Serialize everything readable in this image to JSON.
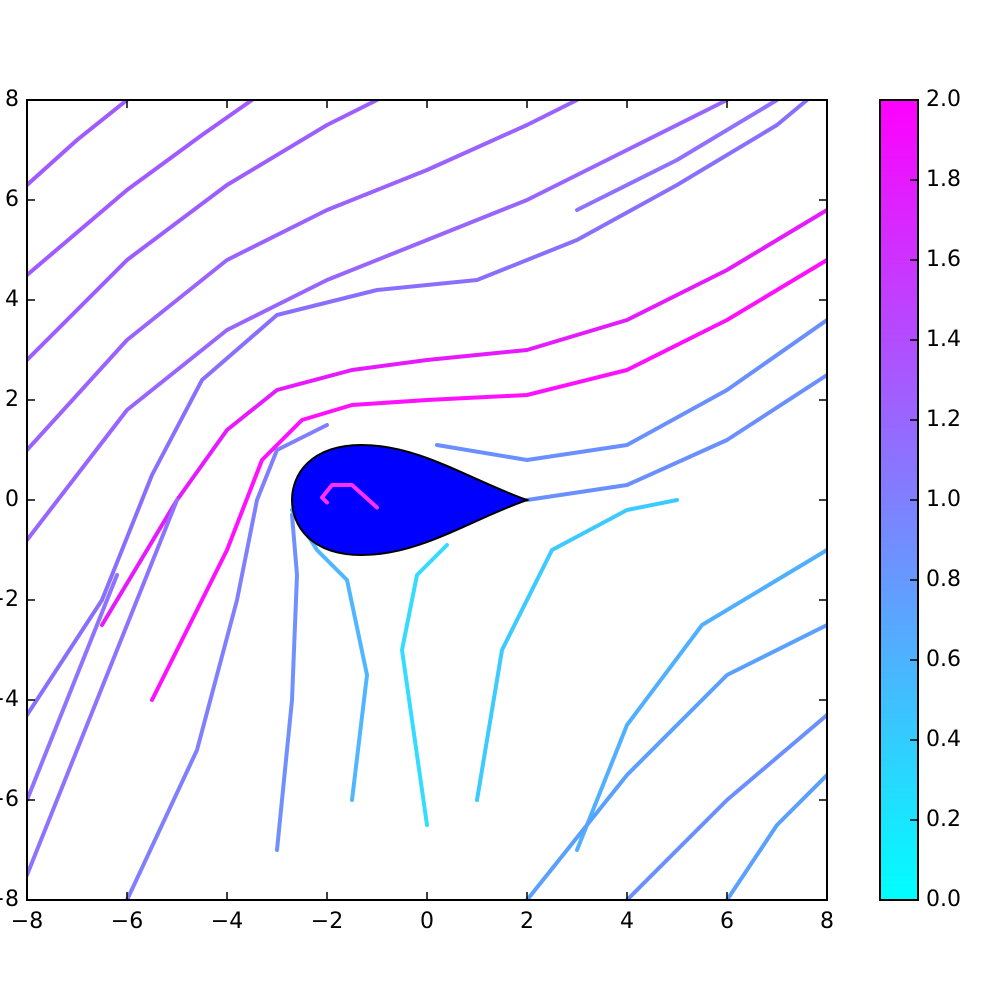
{
  "chart_data": {
    "type": "streamplot",
    "xlim": [
      -8,
      8
    ],
    "ylim": [
      -8,
      8
    ],
    "xticks": [
      {
        "value": -8,
        "label": "−8"
      },
      {
        "value": -6,
        "label": "−6"
      },
      {
        "value": -4,
        "label": "−4"
      },
      {
        "value": -2,
        "label": "−2"
      },
      0,
      2,
      4,
      6,
      8
    ],
    "yticks": [
      {
        "value": -8,
        "label": "−8"
      },
      {
        "value": -6,
        "label": "−6"
      },
      {
        "value": -4,
        "label": "−4"
      },
      {
        "value": -2,
        "label": "−2"
      },
      0,
      2,
      4,
      6,
      8
    ],
    "grid": false,
    "colormap": [
      "#00ffff",
      "#ff00ff"
    ],
    "clim": [
      0,
      2
    ],
    "cticks": [
      {
        "value": 0,
        "label": "0.0"
      },
      {
        "value": 0.2,
        "label": "0.2"
      },
      {
        "value": 0.4,
        "label": "0.4"
      },
      {
        "value": 0.6,
        "label": "0.6"
      },
      {
        "value": 0.8,
        "label": "0.8"
      },
      {
        "value": 1,
        "label": "1.0"
      },
      {
        "value": 1.2,
        "label": "1.2"
      },
      {
        "value": 1.4,
        "label": "1.4"
      },
      {
        "value": 1.6,
        "label": "1.6"
      },
      {
        "value": 1.8,
        "label": "1.8"
      },
      {
        "value": 2,
        "label": "2.0"
      }
    ],
    "streamlines": [
      {
        "color": "#a05aff",
        "x": [
          -8,
          -7,
          -6
        ],
        "y": [
          6.3,
          7.2,
          8
        ]
      },
      {
        "color": "#a05aff",
        "x": [
          -8,
          -6,
          -4.5,
          -3.5
        ],
        "y": [
          4.5,
          6.2,
          7.3,
          8
        ]
      },
      {
        "color": "#9c5eff",
        "x": [
          -8,
          -6,
          -4,
          -2,
          -1
        ],
        "y": [
          2.8,
          4.8,
          6.3,
          7.5,
          8
        ]
      },
      {
        "color": "#9a62ff",
        "x": [
          -8,
          -6,
          -4,
          -2,
          0,
          2,
          3
        ],
        "y": [
          1,
          3.2,
          4.8,
          5.8,
          6.6,
          7.5,
          8
        ]
      },
      {
        "color": "#9866ff",
        "x": [
          -8,
          -6,
          -4,
          -2,
          0,
          2,
          4,
          6
        ],
        "y": [
          -0.8,
          1.8,
          3.4,
          4.4,
          5.2,
          6,
          7,
          8
        ]
      },
      {
        "color": "#e61aff",
        "x": [
          -6.5,
          -5,
          -4,
          -3,
          -1.5,
          0,
          2,
          4,
          6,
          8
        ],
        "y": [
          -2.5,
          0,
          1.4,
          2.2,
          2.6,
          2.8,
          3,
          3.6,
          4.6,
          5.8
        ]
      },
      {
        "color": "#ff10ff",
        "x": [
          -5.5,
          -4,
          -3.3,
          -2.5,
          -1.5,
          0,
          2,
          4,
          6,
          8
        ],
        "y": [
          -4,
          -1,
          0.8,
          1.6,
          1.9,
          2,
          2.1,
          2.6,
          3.6,
          4.8
        ]
      },
      {
        "color": "#8a6fff",
        "x": [
          -8,
          -6.5,
          -5.5,
          -4.5,
          -3,
          -1,
          1,
          3,
          5,
          7,
          7.6
        ],
        "y": [
          -4.3,
          -2,
          0.5,
          2.4,
          3.7,
          4.2,
          4.4,
          5.2,
          6.3,
          7.5,
          8
        ]
      },
      {
        "color": "#8080ff",
        "x": [
          -6,
          -4.6,
          -3.8,
          -3.4,
          -3,
          -2
        ],
        "y": [
          -8,
          -5,
          -2,
          0,
          1,
          1.5
        ]
      },
      {
        "color": "#7090ff",
        "x": [
          -3,
          -2.7,
          -2.6,
          -2.7
        ],
        "y": [
          -7,
          -4,
          -1.5,
          -0.3
        ]
      },
      {
        "color": "#4fb6ff",
        "x": [
          -1.5,
          -1.2,
          -1.6,
          -2.2,
          -2.7
        ],
        "y": [
          -6,
          -3.5,
          -1.6,
          -1,
          -0.2
        ]
      },
      {
        "color": "#35dcff",
        "x": [
          0,
          -0.5,
          -0.2,
          0.4
        ],
        "y": [
          -6.5,
          -3,
          -1.5,
          -0.9
        ]
      },
      {
        "color": "#3ccaff",
        "x": [
          1,
          1.5,
          2.5,
          4,
          5
        ],
        "y": [
          -6,
          -3,
          -1,
          -0.2,
          0
        ]
      },
      {
        "color": "#50b0ff",
        "x": [
          3,
          4,
          5.5,
          8
        ],
        "y": [
          -7,
          -4.5,
          -2.5,
          -1
        ]
      },
      {
        "color": "#5aa0ff",
        "x": [
          6,
          7,
          8
        ],
        "y": [
          -8,
          -6.5,
          -5.5
        ]
      },
      {
        "color": "#5aa0ff",
        "x": [
          2,
          4,
          6,
          8
        ],
        "y": [
          -8,
          -5.5,
          -3.5,
          -2.5
        ]
      },
      {
        "color": "#6a8fff",
        "x": [
          2,
          4,
          6,
          8
        ],
        "y": [
          0,
          0.3,
          1.2,
          2.5
        ]
      },
      {
        "color": "#6a8fff",
        "x": [
          0.2,
          2,
          4,
          6,
          8
        ],
        "y": [
          1.1,
          0.8,
          1.1,
          2.2,
          3.6
        ]
      },
      {
        "color": "#8f72ff",
        "x": [
          -8,
          -7,
          -6,
          -5
        ],
        "y": [
          -7.5,
          -5,
          -2.5,
          0
        ]
      },
      {
        "color": "#8f72ff",
        "x": [
          -8,
          -7,
          -6.2
        ],
        "y": [
          -6,
          -3.5,
          -1.5
        ]
      },
      {
        "color": "#6a8fff",
        "x": [
          4,
          6,
          8
        ],
        "y": [
          -8,
          -6,
          -4.3
        ]
      },
      {
        "color": "#9070ff",
        "x": [
          3,
          5,
          7
        ],
        "y": [
          5.8,
          6.8,
          8
        ]
      },
      {
        "color": "#ff30ff",
        "x": [
          -1,
          -1.5,
          -1.9,
          -2.1,
          -2
        ],
        "y": [
          -0.15,
          0.3,
          0.3,
          0.05,
          -0.05
        ]
      }
    ]
  }
}
